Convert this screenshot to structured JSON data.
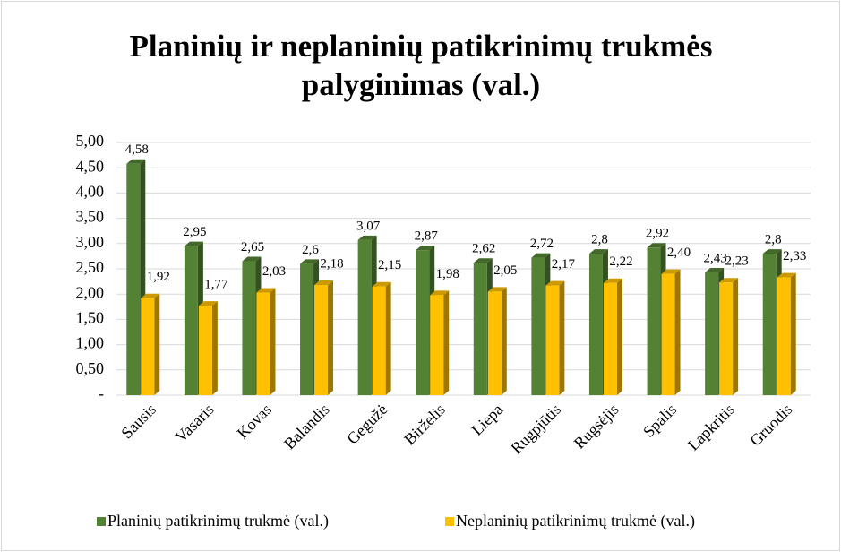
{
  "chart_data": {
    "type": "bar3d",
    "title": "Planinių ir neplaninių patikrinimų trukmės palyginimas (val.)",
    "categories": [
      "Sausis",
      "Vasaris",
      "Kovas",
      "Balandis",
      "Gegužė",
      "Birželis",
      "Liepa",
      "Rugpjūtis",
      "Rugsėjis",
      "Spalis",
      "Lapkritis",
      "Gruodis"
    ],
    "series": [
      {
        "name": "Planinių patikrinimų trukmė (val.)",
        "color": "#548235",
        "values": [
          4.58,
          2.95,
          2.65,
          2.6,
          3.07,
          2.87,
          2.62,
          2.72,
          2.8,
          2.92,
          2.43,
          2.8
        ],
        "value_labels": [
          "4,58",
          "2,95",
          "2,65",
          "2,6",
          "3,07",
          "2,87",
          "2,62",
          "2,72",
          "2,8",
          "2,92",
          "2,43",
          "2,8"
        ]
      },
      {
        "name": "Neplaninių patikrinimų trukmė (val.)",
        "color": "#ffc000",
        "values": [
          1.92,
          1.77,
          2.03,
          2.18,
          2.15,
          1.98,
          2.05,
          2.17,
          2.22,
          2.4,
          2.23,
          2.33
        ],
        "value_labels": [
          "1,92",
          "1,77",
          "2,03",
          "2,18",
          "2,15",
          "1,98",
          "2,05",
          "2,17",
          "2,22",
          "2,40",
          "2,23",
          "2,33"
        ]
      }
    ],
    "ylim": [
      0,
      5
    ],
    "yticks": [
      {
        "value": 0,
        "label": "-"
      },
      {
        "value": 0.5,
        "label": "0,50"
      },
      {
        "value": 1,
        "label": "1,00"
      },
      {
        "value": 1.5,
        "label": "1,50"
      },
      {
        "value": 2,
        "label": "2,00"
      },
      {
        "value": 2.5,
        "label": "2,50"
      },
      {
        "value": 3,
        "label": "3,00"
      },
      {
        "value": 3.5,
        "label": "3,50"
      },
      {
        "value": 4,
        "label": "4,00"
      },
      {
        "value": 4.5,
        "label": "4,50"
      },
      {
        "value": 5,
        "label": "5,00"
      }
    ],
    "grid": true,
    "legend": "bottom"
  }
}
